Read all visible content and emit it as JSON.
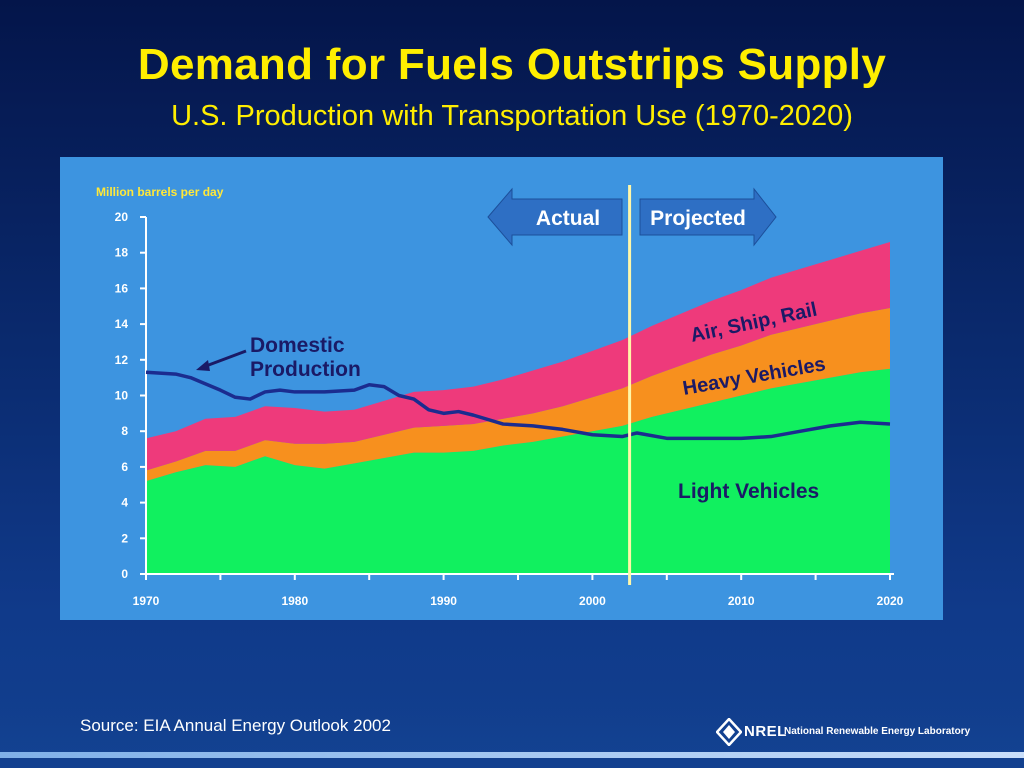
{
  "slide": {
    "title": "Demand for Fuels Outstrips Supply",
    "subtitle": "U.S. Production with Transportation Use (1970-2020)",
    "source": "Source: EIA Annual Energy Outlook 2002",
    "logo_brand": "NREL",
    "logo_name": "National Renewable Energy Laboratory"
  },
  "colors": {
    "light_vehicles": "#11f05f",
    "heavy_vehicles": "#f7901e",
    "air_ship_rail": "#ee3a7b",
    "domestic_production": "#1b2c8f",
    "panel": "#3d94e0",
    "axis_text": "#ffffff",
    "ylabel_text": "#ffe83a",
    "divider": "#fff7a8",
    "arrow": "#2e6fc4"
  },
  "chart_data": {
    "type": "area",
    "ylabel": "Million barrels per day",
    "ylim": [
      0,
      20
    ],
    "yticks": [
      "0",
      "2",
      "4",
      "6",
      "8",
      "10",
      "12",
      "14",
      "16",
      "18",
      "20"
    ],
    "xlim": [
      1970,
      2020
    ],
    "xticks": [
      "1970",
      "1980",
      "1990",
      "2000",
      "2010",
      "2020"
    ],
    "actual_label": "Actual",
    "projected_label": "Projected",
    "divider_year": 2002.5,
    "x": [
      1970,
      1972,
      1974,
      1976,
      1978,
      1980,
      1982,
      1984,
      1986,
      1988,
      1990,
      1992,
      1994,
      1996,
      1998,
      2000,
      2002,
      2004,
      2006,
      2008,
      2010,
      2012,
      2014,
      2016,
      2018,
      2020
    ],
    "series": [
      {
        "name": "Light Vehicles",
        "values": [
          5.2,
          5.7,
          6.1,
          6.0,
          6.6,
          6.1,
          5.9,
          6.2,
          6.5,
          6.8,
          6.8,
          6.9,
          7.2,
          7.4,
          7.7,
          8.0,
          8.3,
          8.8,
          9.2,
          9.6,
          10.0,
          10.4,
          10.7,
          11.0,
          11.3,
          11.5
        ]
      },
      {
        "name": "Heavy Vehicles",
        "values": [
          0.6,
          0.6,
          0.8,
          0.9,
          0.9,
          1.2,
          1.4,
          1.2,
          1.3,
          1.4,
          1.5,
          1.5,
          1.5,
          1.6,
          1.7,
          1.9,
          2.1,
          2.3,
          2.5,
          2.7,
          2.8,
          3.0,
          3.1,
          3.2,
          3.3,
          3.4
        ]
      },
      {
        "name": "Air, Ship, Rail",
        "values": [
          1.8,
          1.7,
          1.8,
          1.9,
          1.9,
          2.0,
          1.8,
          1.8,
          1.9,
          2.0,
          2.0,
          2.1,
          2.2,
          2.4,
          2.5,
          2.6,
          2.7,
          2.8,
          2.9,
          3.0,
          3.1,
          3.2,
          3.3,
          3.4,
          3.5,
          3.7
        ]
      }
    ],
    "line_series": {
      "name": "Domestic Production",
      "label_line1": "Domestic",
      "label_line2": "Production",
      "x": [
        1970,
        1972,
        1973,
        1975,
        1976,
        1977,
        1978,
        1979,
        1980,
        1982,
        1984,
        1985,
        1986,
        1987,
        1988,
        1989,
        1990,
        1991,
        1992,
        1994,
        1996,
        1998,
        2000,
        2002,
        2003,
        2005,
        2007,
        2010,
        2012,
        2014,
        2016,
        2018,
        2020
      ],
      "values": [
        11.3,
        11.2,
        11.0,
        10.3,
        9.9,
        9.8,
        10.2,
        10.3,
        10.2,
        10.2,
        10.3,
        10.6,
        10.5,
        10.0,
        9.8,
        9.2,
        9.0,
        9.1,
        8.9,
        8.4,
        8.3,
        8.1,
        7.8,
        7.7,
        7.9,
        7.6,
        7.6,
        7.6,
        7.7,
        8.0,
        8.3,
        8.5,
        8.4
      ]
    }
  }
}
